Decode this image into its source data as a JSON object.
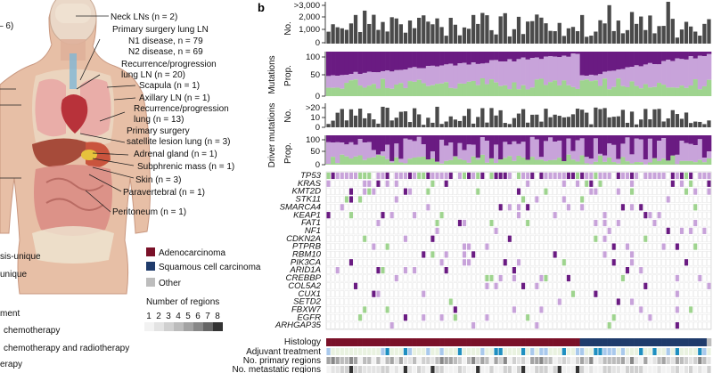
{
  "panel_label": "b",
  "colors": {
    "bars": "#4a4a4a",
    "clonal": "#6a1b82",
    "subclonal": "#c8a3da",
    "private": "#9fd48f",
    "adenocarcinoma": "#7a1128",
    "squamous": "#1f3b6b",
    "other_histology": "#bdbdbd",
    "adj_none": "#f2f2f2",
    "adj_chemo": "#a9c9ec",
    "adj_chemo_radio": "#1e8fc0",
    "cell_empty": "#ffffff",
    "grid_line": "#dedede",
    "body_skin": "#e7bfa6",
    "organ_red": "#b8323a",
    "lung_pink": "#e8a0a0",
    "liver": "#a64b3a",
    "adrenal": "#e6c23c",
    "bone": "#efe6d2"
  },
  "anatomy": {
    "title_fragment": "– 6)",
    "callouts": [
      {
        "text": "Neck LNs (n = 2)"
      },
      {
        "text": "Primary surgery lung LN"
      },
      {
        "text": "N1 disease, n = 79"
      },
      {
        "text": "N2 disease, n = 69"
      },
      {
        "text": "Recurrence/progression"
      },
      {
        "text": "lung LN (n = 20)"
      },
      {
        "text": "Scapula (n = 1)"
      },
      {
        "text": "Axillary LN (n = 1)"
      },
      {
        "text": "Recurrence/progression"
      },
      {
        "text": "lung (n = 13)"
      },
      {
        "text": "Primary surgery"
      },
      {
        "text": "satellite lesion lung (n = 3)"
      },
      {
        "text": "Adrenal gland (n = 1)"
      },
      {
        "text": "Subphrenic mass (n = 1)"
      },
      {
        "text": "Skin (n = 3)"
      },
      {
        "text": "Paravertebral (n = 1)"
      },
      {
        "text": "Peritoneum (n = 1)"
      }
    ]
  },
  "legend": {
    "mutation_left": [
      "sis-unique",
      "unique"
    ],
    "treatment_left": [
      "ment",
      "chemotherapy",
      "chemotherapy and radiotherapy",
      "erapy"
    ],
    "histology": [
      {
        "label": "Adenocarcinoma",
        "color": "#7a1128"
      },
      {
        "label": "Squamous cell carcinoma",
        "color": "#1f3b6b"
      },
      {
        "label": "Other",
        "color": "#bdbdbd"
      }
    ],
    "regions_title": "Number of regions",
    "regions_scale": [
      "1",
      "2",
      "3",
      "4",
      "5",
      "6",
      "7",
      "8"
    ]
  },
  "axes": {
    "mutations_group": "Mutations",
    "drivers_group": "Driver mutations",
    "no": "No.",
    "prop": "Prop.",
    "mut_no_ticks": [
      ">3,000",
      "2,000",
      "1,000",
      "0"
    ],
    "mut_prop_ticks": [
      "100",
      "50",
      "0"
    ],
    "drv_no_ticks": [
      ">20",
      "10",
      "0"
    ],
    "drv_prop_ticks": [
      "100",
      "50",
      "0"
    ]
  },
  "annotation_rows": [
    "Histology",
    "Adjuvant treatment",
    "No. primary regions",
    "No. metastatic regions"
  ],
  "chart_data": {
    "type": "bar",
    "n_patients": 85,
    "categories_note": "patients ordered left to right",
    "genes": [
      "TP53",
      "KRAS",
      "KMT2D",
      "STK11",
      "SMARCA4",
      "KEAP1",
      "FAT1",
      "NF1",
      "CDKN2A",
      "PTPRB",
      "RBM10",
      "PIK3CA",
      "ARID1A",
      "CREBBP",
      "COL5A2",
      "CUX1",
      "SETD2",
      "FBXW7",
      "EGFR",
      "ARHGAP35"
    ],
    "panels": [
      {
        "name": "mutations_no",
        "ylabel": "No.",
        "ylim": [
          0,
          3000
        ],
        "tick_labels": [
          ">3,000",
          "2,000",
          "1,000",
          "0"
        ]
      },
      {
        "name": "mutations_prop",
        "ylabel": "Prop.",
        "ylim": [
          0,
          100
        ],
        "stacked": [
          "clonal",
          "subclonal",
          "private"
        ]
      },
      {
        "name": "drivers_no",
        "ylabel": "No.",
        "ylim": [
          0,
          20
        ],
        "tick_labels": [
          ">20",
          "10",
          "0"
        ]
      },
      {
        "name": "drivers_prop",
        "ylabel": "Prop.",
        "ylim": [
          0,
          100
        ],
        "stacked": [
          "clonal",
          "subclonal",
          "private"
        ]
      }
    ],
    "adenocarcinoma_patients": 56,
    "squamous_patients": 28,
    "other_patients": 1
  }
}
